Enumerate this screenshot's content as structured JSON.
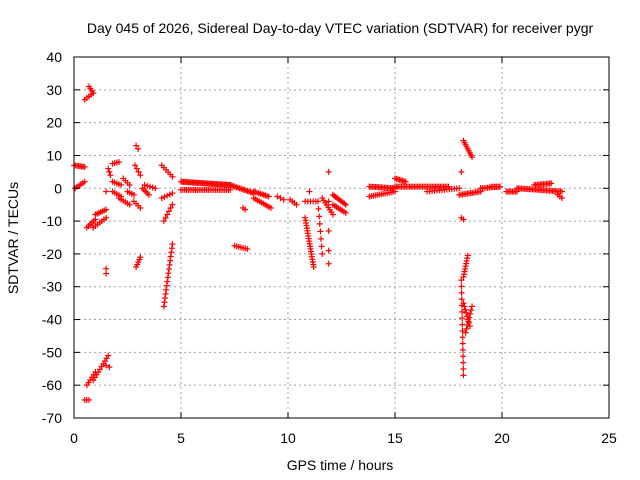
{
  "chart_data": {
    "type": "scatter",
    "title": "Day 045 of 2026, Sidereal Day-to-day VTEC variation (SDTVAR) for receiver pygr",
    "xlabel": "GPS time / hours",
    "ylabel": "SDTVAR / TECUs",
    "xlim": [
      0,
      25
    ],
    "ylim": [
      -70,
      40
    ],
    "xticks": [
      0,
      5,
      10,
      15,
      20,
      25
    ],
    "yticks": [
      -70,
      -60,
      -50,
      -40,
      -30,
      -20,
      -10,
      0,
      10,
      20,
      30,
      40
    ],
    "xtick_labels": [
      "0",
      "5",
      "10",
      "15",
      "20",
      "25"
    ],
    "ytick_labels": [
      "-70",
      "-60",
      "-50",
      "-40",
      "-30",
      "-20",
      "-10",
      "0",
      "10",
      "20",
      "30",
      "40"
    ],
    "grid": true,
    "marker": "+",
    "color": "#ff0000",
    "segments": [
      {
        "x0": 0.0,
        "y0": 7.0,
        "x1": 0.5,
        "y1": 6.5,
        "n": 8
      },
      {
        "x0": 0.05,
        "y0": 0.0,
        "x1": 0.5,
        "y1": 2.0,
        "n": 6
      },
      {
        "x0": 0.5,
        "y0": 27.0,
        "x1": 0.9,
        "y1": 29.0,
        "n": 5
      },
      {
        "x0": 0.7,
        "y0": 31.0,
        "x1": 0.9,
        "y1": 29.0,
        "n": 4
      },
      {
        "x0": 0.6,
        "y0": -12.0,
        "x1": 1.0,
        "y1": -9.5,
        "n": 6
      },
      {
        "x0": 1.0,
        "y0": -8.0,
        "x1": 1.5,
        "y1": -6.5,
        "n": 7
      },
      {
        "x0": 0.9,
        "y0": -12.0,
        "x1": 1.5,
        "y1": -9.0,
        "n": 7
      },
      {
        "x0": 0.5,
        "y0": -64.5,
        "x1": 0.7,
        "y1": -64.5,
        "n": 3
      },
      {
        "x0": 0.6,
        "y0": -60.0,
        "x1": 1.0,
        "y1": -56.0,
        "n": 6
      },
      {
        "x0": 0.9,
        "y0": -58.5,
        "x1": 1.6,
        "y1": -51.0,
        "n": 10
      },
      {
        "x0": 1.5,
        "y0": -54.0,
        "x1": 1.65,
        "y1": -54.5,
        "n": 2
      },
      {
        "x0": 1.5,
        "y0": -24.5,
        "x1": 1.5,
        "y1": -26.0,
        "n": 2
      },
      {
        "x0": 1.5,
        "y0": -1.0,
        "x1": 1.5,
        "y1": -1.0,
        "n": 1
      },
      {
        "x0": 1.6,
        "y0": 6.0,
        "x1": 1.7,
        "y1": 4.0,
        "n": 3
      },
      {
        "x0": 1.8,
        "y0": 7.5,
        "x1": 2.1,
        "y1": 8.0,
        "n": 4
      },
      {
        "x0": 1.8,
        "y0": 2.0,
        "x1": 2.2,
        "y1": 1.0,
        "n": 5
      },
      {
        "x0": 1.8,
        "y0": -1.0,
        "x1": 2.2,
        "y1": -2.5,
        "n": 5
      },
      {
        "x0": 2.3,
        "y0": 3.0,
        "x1": 2.6,
        "y1": 1.0,
        "n": 4
      },
      {
        "x0": 2.1,
        "y0": -3.0,
        "x1": 2.6,
        "y1": -5.0,
        "n": 6
      },
      {
        "x0": 2.5,
        "y0": -1.0,
        "x1": 2.8,
        "y1": -2.0,
        "n": 4
      },
      {
        "x0": 2.9,
        "y0": 13.0,
        "x1": 3.0,
        "y1": 12.0,
        "n": 2
      },
      {
        "x0": 2.85,
        "y0": 7.0,
        "x1": 3.1,
        "y1": 4.0,
        "n": 4
      },
      {
        "x0": 2.8,
        "y0": -4.0,
        "x1": 3.1,
        "y1": -6.0,
        "n": 4
      },
      {
        "x0": 2.9,
        "y0": -24.0,
        "x1": 3.1,
        "y1": -21.0,
        "n": 5
      },
      {
        "x0": 3.2,
        "y0": 0.0,
        "x1": 3.5,
        "y1": -2.0,
        "n": 5
      },
      {
        "x0": 3.3,
        "y0": 1.0,
        "x1": 3.8,
        "y1": 0.0,
        "n": 5
      },
      {
        "x0": 4.1,
        "y0": 7.0,
        "x1": 4.6,
        "y1": 3.5,
        "n": 6
      },
      {
        "x0": 4.1,
        "y0": -3.0,
        "x1": 4.6,
        "y1": -1.5,
        "n": 5
      },
      {
        "x0": 4.2,
        "y0": -10.0,
        "x1": 4.6,
        "y1": -5.0,
        "n": 6
      },
      {
        "x0": 4.2,
        "y0": -36.0,
        "x1": 4.6,
        "y1": -17.0,
        "n": 16
      },
      {
        "x0": 5.0,
        "y0": 2.0,
        "x1": 7.3,
        "y1": 1.0,
        "n": 40
      },
      {
        "x0": 5.0,
        "y0": -0.5,
        "x1": 7.3,
        "y1": -0.5,
        "n": 28
      },
      {
        "x0": 7.3,
        "y0": 1.0,
        "x1": 8.4,
        "y1": -1.5,
        "n": 16
      },
      {
        "x0": 7.5,
        "y0": -17.5,
        "x1": 8.1,
        "y1": -18.5,
        "n": 7
      },
      {
        "x0": 7.9,
        "y0": -6.0,
        "x1": 8.0,
        "y1": -6.5,
        "n": 2
      },
      {
        "x0": 8.4,
        "y0": -1.0,
        "x1": 9.1,
        "y1": -2.5,
        "n": 10
      },
      {
        "x0": 8.4,
        "y0": -3.0,
        "x1": 9.2,
        "y1": -6.0,
        "n": 10
      },
      {
        "x0": 9.5,
        "y0": -2.5,
        "x1": 9.8,
        "y1": -3.5,
        "n": 3
      },
      {
        "x0": 10.1,
        "y0": -3.5,
        "x1": 10.4,
        "y1": -5.0,
        "n": 4
      },
      {
        "x0": 10.8,
        "y0": -9.0,
        "x1": 11.2,
        "y1": -24.0,
        "n": 20
      },
      {
        "x0": 10.8,
        "y0": -4.0,
        "x1": 11.3,
        "y1": -4.0,
        "n": 5
      },
      {
        "x0": 11.0,
        "y0": -1.0,
        "x1": 11.0,
        "y1": -1.5,
        "n": 1
      },
      {
        "x0": 11.4,
        "y0": -4.0,
        "x1": 11.6,
        "y1": -20.0,
        "n": 8
      },
      {
        "x0": 11.6,
        "y0": -3.0,
        "x1": 12.1,
        "y1": -8.0,
        "n": 8
      },
      {
        "x0": 11.9,
        "y0": 5.0,
        "x1": 11.9,
        "y1": -13.0,
        "n": 3
      },
      {
        "x0": 11.9,
        "y0": -19.0,
        "x1": 11.9,
        "y1": -23.0,
        "n": 2
      },
      {
        "x0": 12.1,
        "y0": -2.0,
        "x1": 12.7,
        "y1": -5.0,
        "n": 10
      },
      {
        "x0": 12.1,
        "y0": -5.0,
        "x1": 12.7,
        "y1": -7.5,
        "n": 8
      },
      {
        "x0": 13.8,
        "y0": 0.5,
        "x1": 15.0,
        "y1": 0.0,
        "n": 18
      },
      {
        "x0": 13.8,
        "y0": -2.5,
        "x1": 15.0,
        "y1": -1.0,
        "n": 14
      },
      {
        "x0": 15.0,
        "y0": 3.0,
        "x1": 15.5,
        "y1": 2.0,
        "n": 8
      },
      {
        "x0": 15.0,
        "y0": 0.5,
        "x1": 17.5,
        "y1": 0.5,
        "n": 34
      },
      {
        "x0": 16.5,
        "y0": -1.0,
        "x1": 18.0,
        "y1": 0.0,
        "n": 14
      },
      {
        "x0": 18.1,
        "y0": 5.0,
        "x1": 18.1,
        "y1": 5.0,
        "n": 1
      },
      {
        "x0": 18.1,
        "y0": -9.0,
        "x1": 18.2,
        "y1": -9.5,
        "n": 2
      },
      {
        "x0": 18.2,
        "y0": 14.5,
        "x1": 18.6,
        "y1": 9.5,
        "n": 9
      },
      {
        "x0": 18.1,
        "y0": -28.0,
        "x1": 18.2,
        "y1": -57.0,
        "n": 16
      },
      {
        "x0": 18.2,
        "y0": -27.0,
        "x1": 18.4,
        "y1": -20.5,
        "n": 9
      },
      {
        "x0": 18.2,
        "y0": -35.0,
        "x1": 18.5,
        "y1": -42.0,
        "n": 8
      },
      {
        "x0": 18.3,
        "y0": -44.0,
        "x1": 18.6,
        "y1": -36.0,
        "n": 8
      },
      {
        "x0": 18.0,
        "y0": -2.0,
        "x1": 19.0,
        "y1": -1.0,
        "n": 14
      },
      {
        "x0": 19.0,
        "y0": 0.0,
        "x1": 19.9,
        "y1": 0.5,
        "n": 12
      },
      {
        "x0": 19.5,
        "y0": 0.5,
        "x1": 19.9,
        "y1": 0.5,
        "n": 6
      },
      {
        "x0": 20.2,
        "y0": -1.0,
        "x1": 20.7,
        "y1": -1.0,
        "n": 8
      },
      {
        "x0": 20.7,
        "y0": 0.0,
        "x1": 22.8,
        "y1": -1.0,
        "n": 30
      },
      {
        "x0": 21.5,
        "y0": 1.0,
        "x1": 22.3,
        "y1": 1.5,
        "n": 12
      },
      {
        "x0": 22.6,
        "y0": -2.0,
        "x1": 22.8,
        "y1": -3.0,
        "n": 3
      }
    ]
  }
}
